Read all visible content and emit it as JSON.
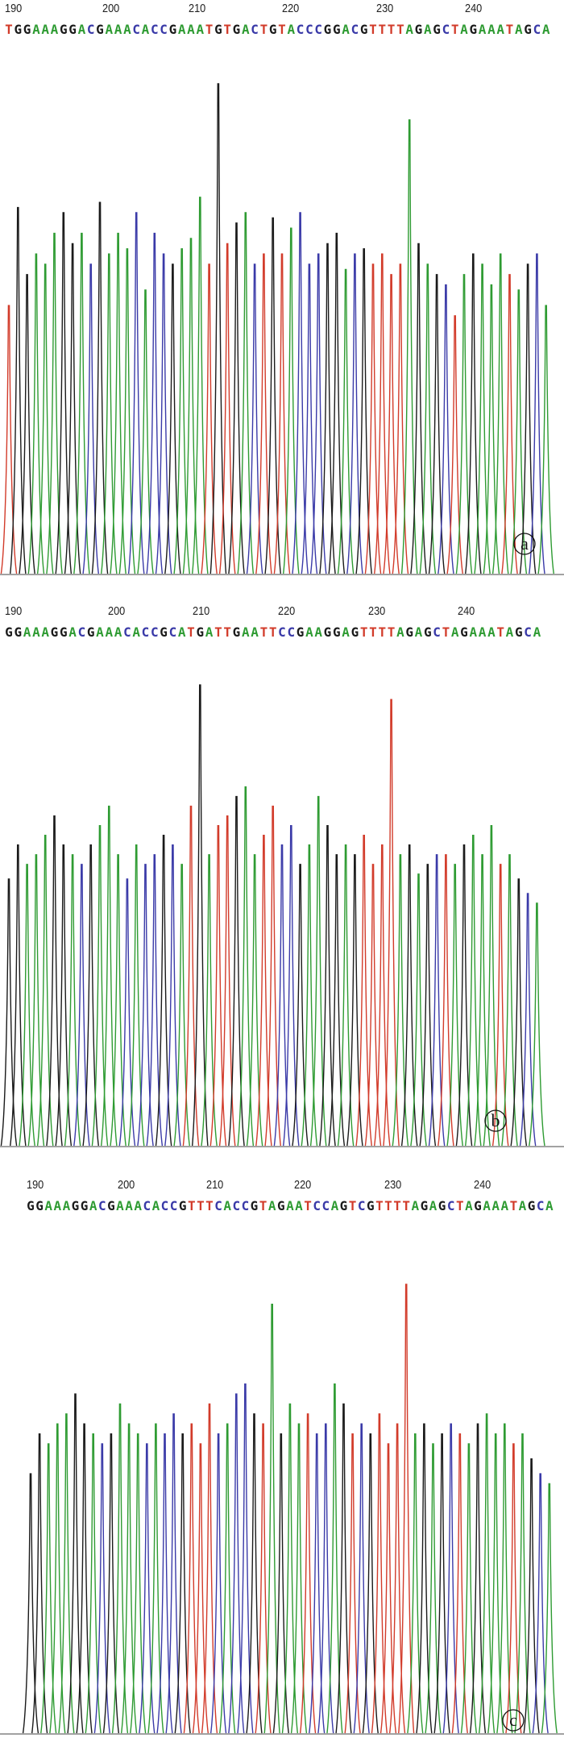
{
  "base_colors": {
    "A": "#2e9b32",
    "C": "#3a3aa8",
    "G": "#1a1a1a",
    "T": "#d23b2a",
    "N": "#777777"
  },
  "panels": [
    {
      "label": "a",
      "tick_labels": [
        "190",
        "200",
        "210",
        "220",
        "230",
        "240"
      ],
      "sequence": "TGGAAAGGACGAAACACCGAAATGTGACTGTACCCGGACGTTTTAGAGCTAGAAATAGCA"
    },
    {
      "label": "b",
      "tick_labels": [
        "190",
        "200",
        "210",
        "220",
        "230",
        "240"
      ],
      "sequence": "GGAAAGGACGAAACACCGCATGATTGAATTCCGAAGGAGTTTTAGAGCTAGAAATAGCA"
    },
    {
      "label": "c",
      "tick_labels": [
        "190",
        "200",
        "210",
        "220",
        "230",
        "240"
      ],
      "sequence": "GGAAAGGACGAAACACCGTTTCACCGTAGAATCCAGTCGTTTTAGAGCTAGAAATAGCA"
    }
  ],
  "chart_data": [
    {
      "type": "line",
      "panel": "a",
      "xlabel": "",
      "ylabel": "",
      "x_ticks": [
        190,
        200,
        210,
        220,
        230,
        240
      ],
      "xlim": [
        188,
        247
      ],
      "grid": false,
      "series": [
        {
          "base_calls": "TGGAAAGGACGAAACACCGAAATGTGACTGTACCCGGACGTTTTAGAGCTAGAAATAGCA",
          "peak_heights": [
            0.52,
            0.71,
            0.58,
            0.62,
            0.6,
            0.66,
            0.7,
            0.64,
            0.66,
            0.6,
            0.72,
            0.62,
            0.66,
            0.63,
            0.7,
            0.55,
            0.66,
            0.62,
            0.6,
            0.63,
            0.65,
            0.73,
            0.6,
            0.95,
            0.64,
            0.68,
            0.7,
            0.6,
            0.62,
            0.69,
            0.62,
            0.67,
            0.7,
            0.6,
            0.62,
            0.64,
            0.66,
            0.59,
            0.62,
            0.63,
            0.6,
            0.62,
            0.58,
            0.6,
            0.88,
            0.64,
            0.6,
            0.58,
            0.56,
            0.5,
            0.58,
            0.62,
            0.6,
            0.56,
            0.62,
            0.58,
            0.55,
            0.6,
            0.62,
            0.52
          ]
        }
      ]
    },
    {
      "type": "line",
      "panel": "b",
      "xlabel": "",
      "ylabel": "",
      "x_ticks": [
        190,
        200,
        210,
        220,
        230,
        240
      ],
      "xlim": [
        188,
        247
      ],
      "grid": false,
      "series": [
        {
          "base_calls": "GGAAAGGACGAAACACCGCATGATTGAATTCCGAAGGAGTTTTAGAGCTAGAAATAGCA",
          "peak_heights": [
            0.55,
            0.62,
            0.58,
            0.6,
            0.64,
            0.68,
            0.62,
            0.6,
            0.58,
            0.62,
            0.66,
            0.7,
            0.6,
            0.55,
            0.62,
            0.58,
            0.6,
            0.64,
            0.62,
            0.58,
            0.7,
            0.95,
            0.6,
            0.66,
            0.68,
            0.72,
            0.74,
            0.6,
            0.64,
            0.7,
            0.62,
            0.66,
            0.58,
            0.62,
            0.72,
            0.66,
            0.6,
            0.62,
            0.6,
            0.64,
            0.58,
            0.62,
            0.92,
            0.6,
            0.62,
            0.56,
            0.58,
            0.6,
            0.6,
            0.58,
            0.62,
            0.64,
            0.6,
            0.66,
            0.58,
            0.6,
            0.55,
            0.52,
            0.5
          ]
        }
      ]
    },
    {
      "type": "line",
      "panel": "c",
      "xlabel": "",
      "ylabel": "",
      "x_ticks": [
        190,
        200,
        210,
        220,
        230,
        240
      ],
      "xlim": [
        188,
        247
      ],
      "grid": false,
      "series": [
        {
          "base_calls": "GGAAAGGACGAAACACCGTTTCACCGTAGAATCCAGTCGTTTTAGAGCTAGAAATAGCA",
          "peak_heights": [
            0.52,
            0.6,
            0.58,
            0.62,
            0.64,
            0.68,
            0.62,
            0.6,
            0.58,
            0.6,
            0.66,
            0.62,
            0.6,
            0.58,
            0.62,
            0.6,
            0.64,
            0.6,
            0.62,
            0.58,
            0.66,
            0.6,
            0.62,
            0.68,
            0.7,
            0.64,
            0.62,
            0.86,
            0.6,
            0.66,
            0.62,
            0.64,
            0.6,
            0.62,
            0.7,
            0.66,
            0.6,
            0.62,
            0.6,
            0.64,
            0.58,
            0.62,
            0.9,
            0.6,
            0.62,
            0.58,
            0.6,
            0.62,
            0.6,
            0.58,
            0.62,
            0.64,
            0.6,
            0.62,
            0.58,
            0.6,
            0.55,
            0.52,
            0.5
          ]
        }
      ]
    }
  ]
}
